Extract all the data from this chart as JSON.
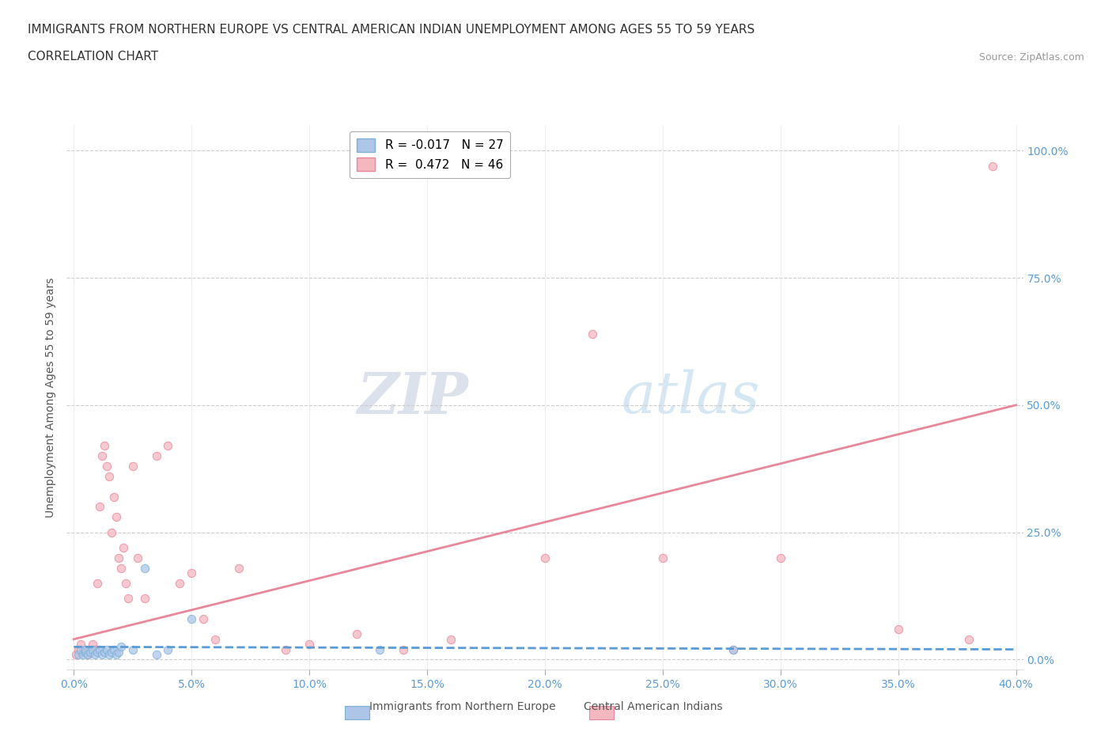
{
  "title_line1": "IMMIGRANTS FROM NORTHERN EUROPE VS CENTRAL AMERICAN INDIAN UNEMPLOYMENT AMONG AGES 55 TO 59 YEARS",
  "title_line2": "CORRELATION CHART",
  "source_text": "Source: ZipAtlas.com",
  "ylabel": "Unemployment Among Ages 55 to 59 years",
  "xlim": [
    -0.003,
    0.403
  ],
  "ylim": [
    -0.02,
    1.05
  ],
  "xtick_labels": [
    "0.0%",
    "5.0%",
    "10.0%",
    "15.0%",
    "20.0%",
    "25.0%",
    "30.0%",
    "35.0%",
    "40.0%"
  ],
  "xtick_values": [
    0.0,
    0.05,
    0.1,
    0.15,
    0.2,
    0.25,
    0.3,
    0.35,
    0.4
  ],
  "ytick_labels": [
    "0.0%",
    "25.0%",
    "50.0%",
    "75.0%",
    "100.0%"
  ],
  "ytick_values": [
    0.0,
    0.25,
    0.5,
    0.75,
    1.0
  ],
  "axis_label_color": "#5b9bd5",
  "blue_color": "#adc6e8",
  "blue_edge": "#7ab0d8",
  "pink_color": "#f4b8c1",
  "pink_edge": "#e8879a",
  "trend_blue_color": "#5b9bd5",
  "trend_pink_color": "#e8879a",
  "watermark_zip": "ZIP",
  "watermark_atlas": "atlas",
  "legend_r1": "R = -0.017   N = 27",
  "legend_r2": "R =  0.472   N = 46",
  "blue_scatter_x": [
    0.002,
    0.003,
    0.004,
    0.005,
    0.005,
    0.006,
    0.007,
    0.008,
    0.009,
    0.01,
    0.011,
    0.012,
    0.013,
    0.014,
    0.015,
    0.016,
    0.017,
    0.018,
    0.019,
    0.02,
    0.025,
    0.03,
    0.035,
    0.04,
    0.05,
    0.13,
    0.28
  ],
  "blue_scatter_y": [
    0.01,
    0.02,
    0.01,
    0.015,
    0.02,
    0.01,
    0.015,
    0.02,
    0.01,
    0.015,
    0.02,
    0.01,
    0.015,
    0.02,
    0.01,
    0.015,
    0.02,
    0.01,
    0.015,
    0.025,
    0.02,
    0.18,
    0.01,
    0.02,
    0.08,
    0.02,
    0.02
  ],
  "pink_scatter_x": [
    0.001,
    0.002,
    0.003,
    0.004,
    0.005,
    0.006,
    0.007,
    0.008,
    0.009,
    0.01,
    0.011,
    0.012,
    0.013,
    0.014,
    0.015,
    0.016,
    0.017,
    0.018,
    0.019,
    0.02,
    0.021,
    0.022,
    0.023,
    0.025,
    0.027,
    0.03,
    0.035,
    0.04,
    0.045,
    0.05,
    0.055,
    0.06,
    0.07,
    0.09,
    0.1,
    0.12,
    0.14,
    0.16,
    0.2,
    0.22,
    0.25,
    0.28,
    0.3,
    0.35,
    0.38,
    0.39
  ],
  "pink_scatter_y": [
    0.01,
    0.02,
    0.03,
    0.015,
    0.02,
    0.01,
    0.015,
    0.03,
    0.02,
    0.15,
    0.3,
    0.4,
    0.42,
    0.38,
    0.36,
    0.25,
    0.32,
    0.28,
    0.2,
    0.18,
    0.22,
    0.15,
    0.12,
    0.38,
    0.2,
    0.12,
    0.4,
    0.42,
    0.15,
    0.17,
    0.08,
    0.04,
    0.18,
    0.02,
    0.03,
    0.05,
    0.02,
    0.04,
    0.2,
    0.64,
    0.2,
    0.02,
    0.2,
    0.06,
    0.04,
    0.97
  ],
  "pink_trend_x0": 0.0,
  "pink_trend_y0": 0.04,
  "pink_trend_x1": 0.4,
  "pink_trend_y1": 0.5,
  "blue_trend_x0": 0.0,
  "blue_trend_y0": 0.025,
  "blue_trend_x1": 0.4,
  "blue_trend_y1": 0.02,
  "background_color": "#ffffff",
  "marker_size": 55,
  "marker_alpha": 0.75
}
